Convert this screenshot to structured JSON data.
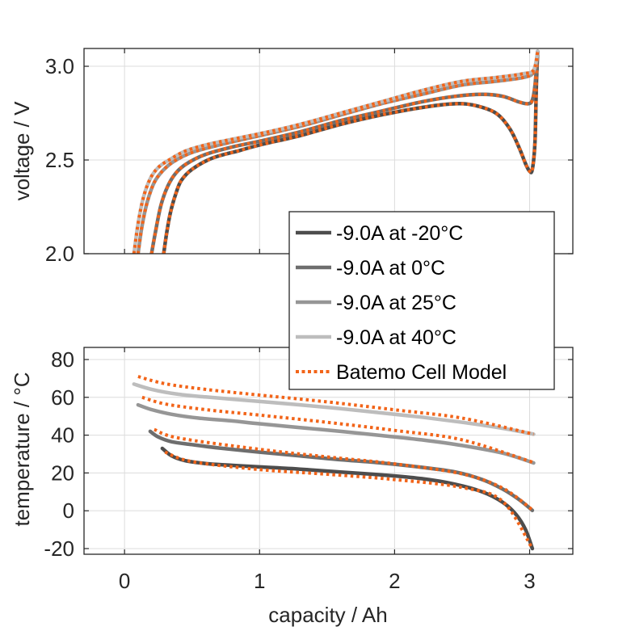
{
  "chart_data": [
    {
      "type": "line",
      "panel": "top",
      "title": "",
      "xlabel": "",
      "ylabel": "voltage / V",
      "xlim": [
        -0.3,
        3.32
      ],
      "ylim": [
        2.0,
        3.095
      ],
      "xticks": [
        0,
        1,
        2,
        3
      ],
      "xtick_labels_visible": false,
      "yticks": [
        2.0,
        2.5,
        3.0
      ],
      "ytick_labels": [
        "2.0",
        "2.5",
        "3.0"
      ],
      "grid": true,
      "series": [
        {
          "name": "-9.0A at -20°C",
          "kind": "measurement",
          "color": "#4d4d4d",
          "x": [
            0.29,
            0.31,
            0.34,
            0.38,
            0.42,
            0.5,
            0.65,
            0.85,
            1.0,
            1.3,
            1.6,
            1.9,
            2.2,
            2.45,
            2.6,
            2.75,
            2.85,
            2.92,
            2.97,
            3.0,
            3.02,
            3.04,
            3.05,
            3.06
          ],
          "y": [
            2.0,
            2.1,
            2.22,
            2.32,
            2.39,
            2.45,
            2.51,
            2.55,
            2.58,
            2.63,
            2.69,
            2.74,
            2.78,
            2.8,
            2.79,
            2.75,
            2.67,
            2.57,
            2.48,
            2.44,
            2.45,
            2.6,
            2.9,
            3.08
          ]
        },
        {
          "name": "-9.0A at 0°C",
          "kind": "measurement",
          "color": "#6e6e6e",
          "x": [
            0.2,
            0.23,
            0.27,
            0.32,
            0.38,
            0.46,
            0.6,
            0.8,
            1.0,
            1.3,
            1.6,
            1.9,
            2.2,
            2.45,
            2.65,
            2.8,
            2.92,
            2.99,
            3.02,
            3.04,
            3.06
          ],
          "y": [
            2.0,
            2.12,
            2.26,
            2.36,
            2.43,
            2.48,
            2.53,
            2.57,
            2.6,
            2.65,
            2.71,
            2.76,
            2.81,
            2.84,
            2.85,
            2.84,
            2.81,
            2.8,
            2.82,
            2.9,
            3.08
          ]
        },
        {
          "name": "-9.0A at 25°C",
          "kind": "measurement",
          "color": "#969696",
          "x": [
            0.1,
            0.13,
            0.17,
            0.22,
            0.28,
            0.36,
            0.5,
            0.7,
            1.0,
            1.3,
            1.6,
            1.9,
            2.2,
            2.5,
            2.75,
            2.95,
            3.03,
            3.06
          ],
          "y": [
            2.0,
            2.15,
            2.28,
            2.38,
            2.44,
            2.49,
            2.54,
            2.58,
            2.63,
            2.68,
            2.74,
            2.8,
            2.85,
            2.9,
            2.92,
            2.94,
            2.97,
            3.08
          ]
        },
        {
          "name": "-9.0A at 40°C",
          "kind": "measurement",
          "color": "#bdbdbd",
          "x": [
            0.07,
            0.1,
            0.14,
            0.19,
            0.25,
            0.33,
            0.46,
            0.66,
            1.0,
            1.3,
            1.6,
            1.9,
            2.2,
            2.5,
            2.75,
            2.95,
            3.03,
            3.06
          ],
          "y": [
            2.0,
            2.16,
            2.3,
            2.4,
            2.46,
            2.5,
            2.55,
            2.59,
            2.64,
            2.69,
            2.75,
            2.81,
            2.87,
            2.92,
            2.94,
            2.96,
            2.98,
            3.08
          ]
        }
      ],
      "model_series": {
        "name": "Batemo Cell Model",
        "color": "#f26419",
        "style": "dotted",
        "note": "Model curves closely overlay each measured curve"
      }
    },
    {
      "type": "line",
      "panel": "bottom",
      "title": "",
      "xlabel": "capacity / Ah",
      "ylabel": "temperature / °C",
      "xlim": [
        -0.3,
        3.32
      ],
      "ylim": [
        -23,
        86.4
      ],
      "xticks": [
        0,
        1,
        2,
        3
      ],
      "xtick_labels": [
        "0",
        "1",
        "2",
        "3"
      ],
      "yticks": [
        -20,
        0,
        20,
        40,
        60,
        80
      ],
      "ytick_labels": [
        "-20",
        "0",
        "20",
        "40",
        "60",
        "80"
      ],
      "grid": true,
      "series": [
        {
          "name": "-9.0A at -20°C",
          "kind": "measurement",
          "color": "#4d4d4d",
          "x": [
            0.28,
            0.35,
            0.45,
            0.6,
            0.8,
            1.0,
            1.3,
            1.6,
            1.9,
            2.2,
            2.45,
            2.65,
            2.8,
            2.9,
            2.97,
            3.02
          ],
          "y": [
            33,
            29,
            26.5,
            25,
            24,
            23.2,
            22,
            20.5,
            19,
            17,
            14,
            10,
            4.5,
            -2,
            -10,
            -20
          ]
        },
        {
          "name": "-9.0A at 0°C",
          "kind": "measurement",
          "color": "#6e6e6e",
          "x": [
            0.19,
            0.25,
            0.35,
            0.5,
            0.7,
            1.0,
            1.3,
            1.6,
            1.9,
            2.2,
            2.45,
            2.65,
            2.8,
            2.92,
            3.02
          ],
          "y": [
            42,
            39,
            36.5,
            35,
            33.2,
            31,
            29,
            27,
            25.3,
            23,
            20.5,
            16.5,
            11.5,
            6,
            0.2
          ]
        },
        {
          "name": "-9.0A at 25°C",
          "kind": "measurement",
          "color": "#969696",
          "x": [
            0.1,
            0.2,
            0.35,
            0.55,
            0.8,
            1.0,
            1.3,
            1.6,
            1.9,
            2.2,
            2.5,
            2.8,
            3.03
          ],
          "y": [
            56,
            53.5,
            51,
            49,
            47.5,
            46,
            44,
            42,
            39.8,
            37.5,
            34.5,
            30.5,
            25.3
          ]
        },
        {
          "name": "-9.0A at 40°C",
          "kind": "measurement",
          "color": "#bdbdbd",
          "x": [
            0.07,
            0.2,
            0.4,
            0.6,
            0.8,
            1.0,
            1.3,
            1.6,
            1.9,
            2.2,
            2.5,
            2.8,
            3.03
          ],
          "y": [
            67,
            64.2,
            61.6,
            60.2,
            59,
            57.8,
            56,
            54,
            51.8,
            49.5,
            46.8,
            43.6,
            40.5
          ]
        }
      ],
      "model_series": {
        "name": "Batemo Cell Model",
        "color": "#f26419",
        "style": "dotted",
        "offsets_by_series": {
          "-9.0A at -20°C": {
            "x": [
              0.3,
              0.5,
              1.0,
              1.5,
              2.0,
              2.5,
              2.8,
              3.02
            ],
            "y": [
              31,
              26,
              21.8,
              19.3,
              16.5,
              12.3,
              5,
              -20
            ]
          },
          "-9.0A at 0°C": {
            "x": [
              0.22,
              0.4,
              1.0,
              1.5,
              2.0,
              2.5,
              2.8,
              3.02
            ],
            "y": [
              43,
              38.5,
              32.5,
              28.5,
              24.8,
              19.5,
              12,
              0.5
            ]
          },
          "-9.0A at 25°C": {
            "x": [
              0.13,
              0.3,
              0.6,
              1.0,
              1.5,
              2.0,
              2.5,
              3.03
            ],
            "y": [
              60,
              56.5,
              53.5,
              50.6,
              46.8,
              42.5,
              37.5,
              25.5
            ]
          },
          "-9.0A at 40°C": {
            "x": [
              0.1,
              0.3,
              0.6,
              1.0,
              1.5,
              2.0,
              2.5,
              3.03
            ],
            "y": [
              71,
              67.2,
              64.2,
              61.2,
              57.6,
              53.4,
              49,
              40.5
            ]
          }
        }
      }
    }
  ],
  "legend": {
    "placement": "right, spanning between panels",
    "entries": [
      {
        "label": "-9.0A at -20°C",
        "color": "#4d4d4d",
        "style": "solid"
      },
      {
        "label": "-9.0A at 0°C",
        "color": "#6e6e6e",
        "style": "solid"
      },
      {
        "label": "-9.0A at 25°C",
        "color": "#969696",
        "style": "solid"
      },
      {
        "label": "-9.0A at 40°C",
        "color": "#bdbdbd",
        "style": "solid"
      },
      {
        "label": "Batemo Cell Model",
        "color": "#f26419",
        "style": "dotted"
      }
    ]
  },
  "labels": {
    "top_ylabel": "voltage / V",
    "bottom_ylabel": "temperature / °C",
    "xlabel": "capacity / Ah"
  }
}
